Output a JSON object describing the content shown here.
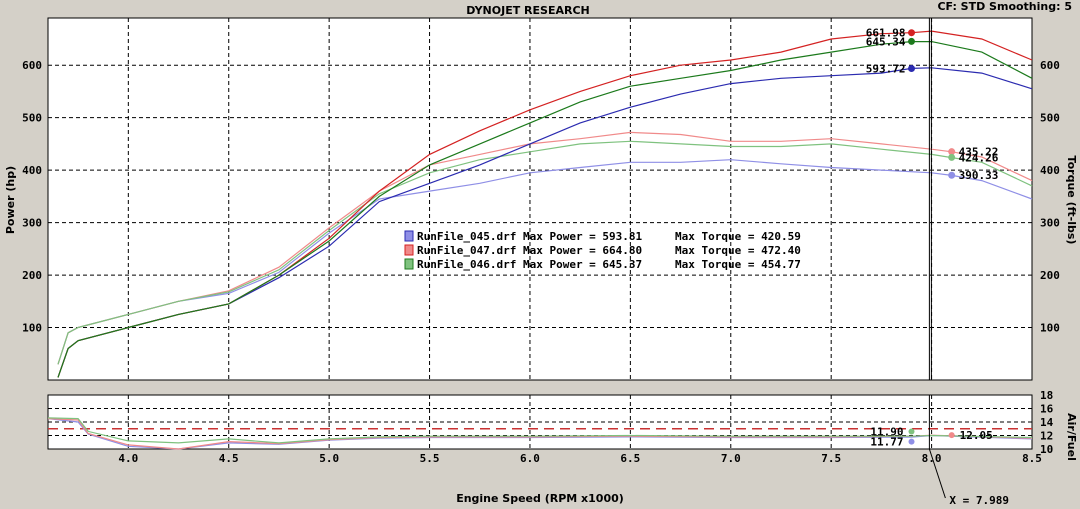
{
  "header": {
    "title": "DYNOJET RESEARCH",
    "right": "CF: STD  Smoothing: 5"
  },
  "colors": {
    "run045": "#2b2bb0",
    "run047": "#d42222",
    "run046": "#1c7a1c",
    "run045_light": "#8f8fe6",
    "run047_light": "#f08a8a",
    "run046_light": "#7fc27f",
    "afr_target": "#c83232",
    "cursor": "#000000"
  },
  "chart_data": [
    {
      "type": "line",
      "xlabel": "Engine Speed (RPM x1000)",
      "ylabel": "Power (hp)",
      "ylabel_right": "Torque (ft-lbs)",
      "xlim": [
        3.6,
        8.5
      ],
      "ylim": [
        0,
        690
      ],
      "x_ticks": [
        "4.0",
        "4.5",
        "5.0",
        "5.5",
        "6.0",
        "6.5",
        "7.0",
        "7.5",
        "8.0",
        "8.5"
      ],
      "y_ticks": [
        "100",
        "200",
        "300",
        "400",
        "500",
        "600"
      ],
      "y_ticks_right": [
        "100",
        "200",
        "300",
        "400",
        "500",
        "600"
      ],
      "cursor_x": 7.989,
      "power": [
        {
          "name": "RunFile_045.drf",
          "x": [
            3.65,
            3.7,
            3.75,
            4.0,
            4.25,
            4.5,
            4.75,
            5.0,
            5.25,
            5.5,
            5.75,
            6.0,
            6.25,
            6.5,
            6.75,
            7.0,
            7.25,
            7.5,
            7.75,
            7.9,
            8.0,
            8.25,
            8.5
          ],
          "y": [
            5,
            60,
            75,
            100,
            125,
            145,
            195,
            255,
            340,
            375,
            410,
            450,
            490,
            520,
            545,
            565,
            575,
            580,
            585,
            594,
            595,
            585,
            555
          ]
        },
        {
          "name": "RunFile_047.drf",
          "x": [
            3.65,
            3.7,
            3.75,
            4.0,
            4.25,
            4.5,
            4.75,
            5.0,
            5.25,
            5.5,
            5.75,
            6.0,
            6.25,
            6.5,
            6.75,
            7.0,
            7.25,
            7.5,
            7.75,
            7.9,
            8.0,
            8.25,
            8.5
          ],
          "y": [
            5,
            60,
            75,
            100,
            125,
            145,
            200,
            270,
            360,
            430,
            475,
            515,
            550,
            580,
            600,
            610,
            625,
            650,
            660,
            662,
            665,
            650,
            610
          ]
        },
        {
          "name": "RunFile_046.drf",
          "x": [
            3.65,
            3.7,
            3.75,
            4.0,
            4.25,
            4.5,
            4.75,
            5.0,
            5.25,
            5.5,
            5.75,
            6.0,
            6.25,
            6.5,
            6.75,
            7.0,
            7.25,
            7.5,
            7.75,
            7.9,
            8.0,
            8.25,
            8.5
          ],
          "y": [
            5,
            60,
            75,
            100,
            125,
            145,
            200,
            265,
            350,
            410,
            450,
            490,
            530,
            560,
            575,
            590,
            610,
            625,
            640,
            645,
            645,
            625,
            575
          ]
        }
      ],
      "torque": [
        {
          "name": "RunFile_045.drf",
          "x": [
            3.65,
            3.7,
            3.75,
            4.0,
            4.25,
            4.5,
            4.75,
            5.0,
            5.25,
            5.5,
            5.75,
            6.0,
            6.25,
            6.5,
            6.75,
            7.0,
            7.25,
            7.5,
            7.75,
            8.0,
            8.1,
            8.25,
            8.5
          ],
          "y": [
            30,
            90,
            100,
            125,
            150,
            165,
            205,
            280,
            345,
            360,
            375,
            395,
            405,
            415,
            415,
            420,
            412,
            405,
            400,
            395,
            390,
            380,
            345
          ]
        },
        {
          "name": "RunFile_047.drf",
          "x": [
            3.65,
            3.7,
            3.75,
            4.0,
            4.25,
            4.5,
            4.75,
            5.0,
            5.25,
            5.5,
            5.75,
            6.0,
            6.25,
            6.5,
            6.75,
            7.0,
            7.25,
            7.5,
            7.75,
            8.0,
            8.1,
            8.25,
            8.5
          ],
          "y": [
            30,
            90,
            100,
            125,
            150,
            170,
            215,
            290,
            360,
            410,
            430,
            450,
            460,
            472,
            468,
            455,
            455,
            460,
            450,
            440,
            435,
            425,
            380
          ]
        },
        {
          "name": "RunFile_046.drf",
          "x": [
            3.65,
            3.7,
            3.75,
            4.0,
            4.25,
            4.5,
            4.75,
            5.0,
            5.25,
            5.5,
            5.75,
            6.0,
            6.25,
            6.5,
            6.75,
            7.0,
            7.25,
            7.5,
            7.75,
            8.0,
            8.1,
            8.25,
            8.5
          ],
          "y": [
            30,
            90,
            100,
            125,
            150,
            168,
            210,
            285,
            355,
            395,
            420,
            435,
            450,
            455,
            450,
            445,
            445,
            450,
            440,
            430,
            424,
            415,
            370
          ]
        }
      ],
      "power_labels": [
        "661.98",
        "645.34",
        "593.72"
      ],
      "torque_labels": [
        "435.22",
        "424.26",
        "390.33"
      ],
      "legend": [
        {
          "text": "RunFile_045.drf Max Power = 593.81",
          "torque": "Max Torque = 420.59"
        },
        {
          "text": "RunFile_047.drf Max Power = 664.80",
          "torque": "Max Torque = 472.40"
        },
        {
          "text": "RunFile_046.drf Max Power = 645.37",
          "torque": "Max Torque = 454.77"
        }
      ]
    },
    {
      "type": "line",
      "ylabel": "Air/Fuel",
      "xlim": [
        3.6,
        8.5
      ],
      "ylim": [
        10,
        18
      ],
      "y_ticks": [
        "10",
        "12",
        "14",
        "16",
        "18"
      ],
      "target_afr": 13.0,
      "afr": [
        {
          "name": "RunFile_045.drf",
          "x": [
            3.6,
            3.75,
            3.8,
            4.0,
            4.25,
            4.5,
            4.75,
            5.0,
            5.25,
            5.5,
            6.0,
            6.5,
            7.0,
            7.5,
            7.9,
            8.0,
            8.5
          ],
          "y": [
            14.5,
            14.0,
            12.2,
            10.4,
            10.0,
            10.9,
            10.7,
            11.3,
            11.6,
            11.7,
            11.7,
            11.8,
            11.7,
            11.7,
            11.77,
            12.0,
            11.5
          ]
        },
        {
          "name": "RunFile_047.drf",
          "x": [
            3.6,
            3.75,
            3.8,
            4.0,
            4.25,
            4.5,
            4.75,
            5.0,
            5.25,
            5.5,
            6.0,
            6.5,
            7.0,
            7.5,
            7.9,
            8.0,
            8.5
          ],
          "y": [
            14.5,
            14.3,
            12.3,
            10.6,
            10.0,
            11.1,
            10.8,
            11.4,
            11.7,
            11.8,
            11.8,
            11.9,
            11.8,
            11.8,
            11.9,
            12.05,
            11.6
          ]
        },
        {
          "name": "RunFile_046.drf",
          "x": [
            3.6,
            3.75,
            3.8,
            4.0,
            4.25,
            4.5,
            4.75,
            5.0,
            5.25,
            5.5,
            6.0,
            6.5,
            7.0,
            7.5,
            7.9,
            8.0,
            8.5
          ],
          "y": [
            14.6,
            14.5,
            12.6,
            11.2,
            10.9,
            11.5,
            10.9,
            11.5,
            11.8,
            11.9,
            11.9,
            12.0,
            11.9,
            11.9,
            11.9,
            12.0,
            11.7
          ]
        }
      ],
      "afr_labels": [
        "11.90",
        "11.77",
        "12.05"
      ],
      "cursor_label": "X = 7.989"
    }
  ]
}
